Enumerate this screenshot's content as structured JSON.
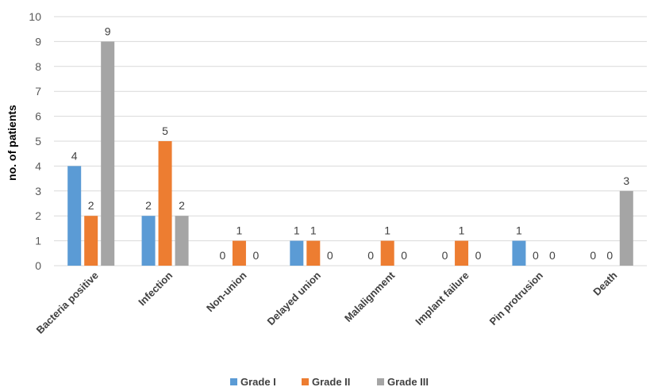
{
  "chart_data": {
    "type": "bar",
    "title": "",
    "xlabel": "",
    "ylabel": "no. of patients",
    "ylim": [
      0,
      10
    ],
    "yticks": [
      0,
      1,
      2,
      3,
      4,
      5,
      6,
      7,
      8,
      9,
      10
    ],
    "grid": true,
    "legend_position": "bottom",
    "categories": [
      "Bacteria positive",
      "Infection",
      "Non-union",
      "Delayed union",
      "Malalignment",
      "Implant failure",
      "Pin protrusion",
      "Death"
    ],
    "series": [
      {
        "name": "Grade I",
        "color": "#5B9BD5",
        "values": [
          4,
          2,
          0,
          1,
          0,
          0,
          1,
          0
        ]
      },
      {
        "name": "Grade II",
        "color": "#ED7D31",
        "values": [
          2,
          5,
          1,
          1,
          1,
          1,
          0,
          0
        ]
      },
      {
        "name": "Grade III",
        "color": "#A5A5A5",
        "values": [
          9,
          2,
          0,
          0,
          0,
          0,
          0,
          3
        ]
      }
    ],
    "gridline_color": "#D9D9D9"
  }
}
